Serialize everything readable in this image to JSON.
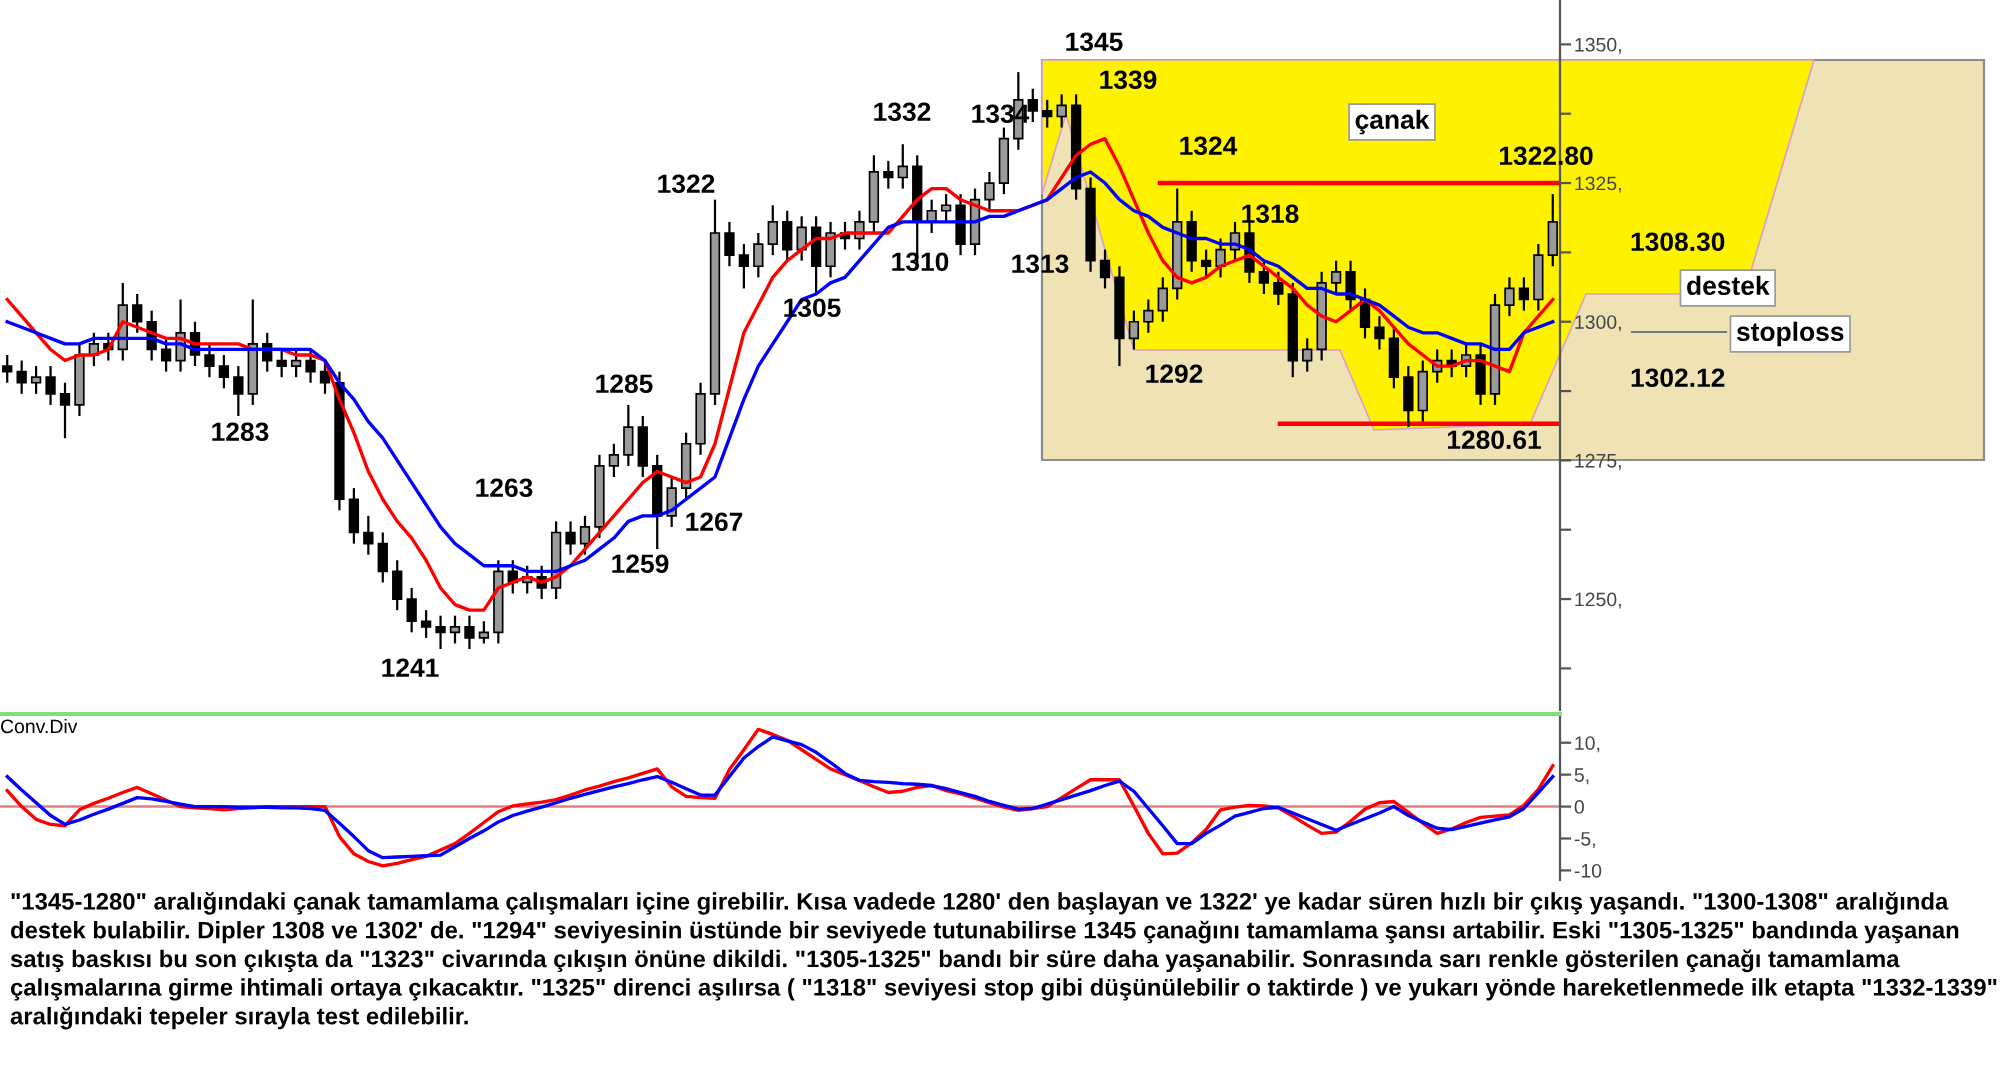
{
  "chart_data": [
    {
      "type": "candlestick",
      "color": "#000000",
      "categories": [
        null,
        null,
        null,
        null,
        null,
        null,
        null,
        null,
        null,
        null,
        null,
        null,
        null,
        null,
        null,
        null,
        null,
        null,
        null,
        null,
        null,
        null,
        null,
        null,
        null,
        null,
        null,
        null,
        null,
        null,
        null,
        null,
        null,
        null,
        null,
        null,
        null,
        null,
        null,
        null,
        null,
        null,
        null,
        null,
        null,
        null,
        null,
        null,
        null,
        null,
        null,
        null,
        null,
        null,
        null,
        null,
        null,
        null,
        null,
        null,
        null,
        null,
        null,
        null,
        null,
        null,
        null,
        null,
        null,
        null,
        null,
        null,
        null,
        null,
        null,
        null,
        null,
        null,
        null,
        null,
        null,
        null,
        null,
        null,
        null,
        null,
        null,
        null,
        null,
        null,
        null,
        null,
        null,
        null,
        null,
        null,
        null,
        null,
        null,
        null,
        null,
        null,
        null,
        null,
        null,
        null,
        null,
        null
      ],
      "ohlc": [
        [
          1292,
          1294,
          1289,
          1291
        ],
        [
          1291,
          1293,
          1287,
          1289
        ],
        [
          1289,
          1292,
          1287,
          1290
        ],
        [
          1290,
          1292,
          1285,
          1287
        ],
        [
          1287,
          1289,
          1279,
          1285
        ],
        [
          1285,
          1296,
          1283,
          1294
        ],
        [
          1294,
          1298,
          1292,
          1296
        ],
        [
          1296,
          1298,
          1293,
          1295
        ],
        [
          1295,
          1307,
          1293,
          1303
        ],
        [
          1303,
          1305,
          1298,
          1300
        ],
        [
          1300,
          1302,
          1293,
          1295
        ],
        [
          1295,
          1297,
          1291,
          1293
        ],
        [
          1293,
          1304,
          1291,
          1298
        ],
        [
          1298,
          1300,
          1292,
          1294
        ],
        [
          1294,
          1296,
          1290,
          1292
        ],
        [
          1292,
          1294,
          1288,
          1290
        ],
        [
          1290,
          1292,
          1283,
          1287
        ],
        [
          1287,
          1304,
          1285,
          1296
        ],
        [
          1296,
          1298,
          1291,
          1293
        ],
        [
          1293,
          1295,
          1290,
          1292
        ],
        [
          1292,
          1295,
          1290,
          1293
        ],
        [
          1293,
          1295,
          1289,
          1291
        ],
        [
          1291,
          1293,
          1287,
          1289
        ],
        [
          1289,
          1291,
          1266,
          1268
        ],
        [
          1268,
          1270,
          1260,
          1262
        ],
        [
          1262,
          1265,
          1258,
          1260
        ],
        [
          1260,
          1262,
          1253,
          1255
        ],
        [
          1255,
          1257,
          1248,
          1250
        ],
        [
          1250,
          1252,
          1244,
          1246
        ],
        [
          1246,
          1248,
          1243,
          1245
        ],
        [
          1245,
          1247,
          1241,
          1244
        ],
        [
          1244,
          1247,
          1242,
          1245
        ],
        [
          1245,
          1247,
          1241,
          1243
        ],
        [
          1243,
          1246,
          1242,
          1244
        ],
        [
          1244,
          1257,
          1242,
          1255
        ],
        [
          1255,
          1257,
          1251,
          1253
        ],
        [
          1253,
          1256,
          1251,
          1254
        ],
        [
          1254,
          1256,
          1250,
          1252
        ],
        [
          1252,
          1264,
          1250,
          1262
        ],
        [
          1262,
          1264,
          1258,
          1260
        ],
        [
          1260,
          1265,
          1258,
          1263
        ],
        [
          1263,
          1276,
          1261,
          1274
        ],
        [
          1274,
          1278,
          1272,
          1276
        ],
        [
          1276,
          1285,
          1274,
          1281
        ],
        [
          1281,
          1283,
          1272,
          1274
        ],
        [
          1274,
          1276,
          1259,
          1265
        ],
        [
          1265,
          1272,
          1263,
          1270
        ],
        [
          1270,
          1280,
          1268,
          1278
        ],
        [
          1278,
          1289,
          1276,
          1287
        ],
        [
          1287,
          1322,
          1285,
          1316
        ],
        [
          1316,
          1318,
          1310,
          1312
        ],
        [
          1312,
          1314,
          1306,
          1310
        ],
        [
          1310,
          1316,
          1308,
          1314
        ],
        [
          1314,
          1321,
          1312,
          1318
        ],
        [
          1318,
          1320,
          1311,
          1313
        ],
        [
          1313,
          1319,
          1311,
          1317
        ],
        [
          1317,
          1319,
          1305,
          1310
        ],
        [
          1310,
          1318,
          1308,
          1316
        ],
        [
          1316,
          1318,
          1313,
          1315
        ],
        [
          1315,
          1320,
          1313,
          1318
        ],
        [
          1318,
          1330,
          1316,
          1327
        ],
        [
          1327,
          1329,
          1324,
          1326
        ],
        [
          1326,
          1332,
          1324,
          1328
        ],
        [
          1328,
          1330,
          1310,
          1318
        ],
        [
          1318,
          1322,
          1316,
          1320
        ],
        [
          1320,
          1323,
          1318,
          1321
        ],
        [
          1321,
          1323,
          1312,
          1314
        ],
        [
          1314,
          1324,
          1312,
          1322
        ],
        [
          1322,
          1327,
          1320,
          1325
        ],
        [
          1325,
          1335,
          1323,
          1333
        ],
        [
          1333,
          1345,
          1331,
          1340
        ],
        [
          1340,
          1342,
          1336,
          1338
        ],
        [
          1338,
          1340,
          1335,
          1337
        ],
        [
          1337,
          1341,
          1335,
          1339
        ],
        [
          1339,
          1341,
          1322,
          1324
        ],
        [
          1324,
          1326,
          1309,
          1311
        ],
        [
          1311,
          1313,
          1306,
          1308
        ],
        [
          1308,
          1310,
          1292,
          1297
        ],
        [
          1297,
          1302,
          1295,
          1300
        ],
        [
          1300,
          1304,
          1298,
          1302
        ],
        [
          1302,
          1308,
          1300,
          1306
        ],
        [
          1306,
          1324,
          1304,
          1318
        ],
        [
          1318,
          1320,
          1309,
          1311
        ],
        [
          1311,
          1313,
          1308,
          1310
        ],
        [
          1310,
          1315,
          1308,
          1313
        ],
        [
          1313,
          1318,
          1311,
          1316
        ],
        [
          1316,
          1318,
          1307,
          1309
        ],
        [
          1309,
          1311,
          1305,
          1307
        ],
        [
          1307,
          1309,
          1303,
          1305
        ],
        [
          1305,
          1307,
          1290,
          1293
        ],
        [
          1293,
          1297,
          1291,
          1295
        ],
        [
          1295,
          1309,
          1293,
          1307
        ],
        [
          1307,
          1311,
          1305,
          1309
        ],
        [
          1309,
          1311,
          1302,
          1304
        ],
        [
          1304,
          1306,
          1297,
          1299
        ],
        [
          1299,
          1301,
          1295,
          1297
        ],
        [
          1297,
          1299,
          1288,
          1290
        ],
        [
          1290,
          1292,
          1281,
          1284
        ],
        [
          1284,
          1293,
          1282,
          1291
        ],
        [
          1291,
          1295,
          1289,
          1293
        ],
        [
          1293,
          1295,
          1290,
          1292
        ],
        [
          1292,
          1296,
          1290,
          1294
        ],
        [
          1294,
          1296,
          1285,
          1287
        ],
        [
          1287,
          1305,
          1285,
          1303
        ],
        [
          1303,
          1308,
          1301,
          1306
        ],
        [
          1306,
          1308,
          1302,
          1304
        ],
        [
          1304,
          1314,
          1302,
          1312
        ],
        [
          1312,
          1323,
          1310,
          1318
        ]
      ],
      "series": [
        {
          "type": "line",
          "color": "#ff0000",
          "values": [
            1304,
            1301,
            1298,
            1295,
            1293,
            1294,
            1294,
            1295,
            1300,
            1299,
            1298,
            1297,
            1297,
            1296,
            1296,
            1296,
            1296,
            1295,
            1295,
            1295,
            1294,
            1294,
            1293,
            1286,
            1280,
            1273,
            1268,
            1264,
            1261,
            1257,
            1252,
            1249,
            1248,
            1248,
            1252,
            1253,
            1254,
            1253,
            1254,
            1256,
            1259,
            1262,
            1265,
            1268,
            1271,
            1273,
            1272,
            1271,
            1272,
            1278,
            1288,
            1298,
            1303,
            1308,
            1311,
            1313,
            1315,
            1315,
            1316,
            1316,
            1316,
            1316,
            1319,
            1322,
            1324,
            1324,
            1322,
            1321,
            1320,
            1320,
            1320,
            1321,
            1322,
            1326,
            1330,
            1332,
            1333,
            1328,
            1322,
            1316,
            1311,
            1308,
            1307,
            1308,
            1310,
            1311,
            1312,
            1310,
            1308,
            1306,
            1303,
            1301,
            1300,
            1302,
            1304,
            1302,
            1299,
            1296,
            1294,
            1292,
            1292,
            1293,
            1293,
            1292,
            1291,
            1298,
            1301,
            1304
          ]
        },
        {
          "type": "line",
          "color": "#0000ff",
          "values": [
            1300,
            1299,
            1298,
            1297,
            1296,
            1296,
            1297,
            1297,
            1297,
            1297,
            1297,
            1296,
            1296,
            1295,
            1295,
            1295,
            1295,
            1295,
            1295,
            1295,
            1295,
            1295,
            1293,
            1289,
            1286,
            1282,
            1279,
            1275,
            1271,
            1267,
            1263,
            1260,
            1258,
            1256,
            1256,
            1256,
            1255,
            1255,
            1255,
            1256,
            1257,
            1259,
            1261,
            1264,
            1265,
            1265,
            1266,
            1268,
            1270,
            1272,
            1279,
            1286,
            1292,
            1296,
            1300,
            1304,
            1305,
            1307,
            1308,
            1311,
            1314,
            1317,
            1318,
            1318,
            1318,
            1318,
            1318,
            1318,
            1319,
            1319,
            1320,
            1321,
            1322,
            1324,
            1326,
            1327,
            1325,
            1322,
            1320,
            1319,
            1317,
            1316,
            1315,
            1315,
            1314,
            1314,
            1313,
            1311,
            1310,
            1308,
            1306,
            1306,
            1305,
            1305,
            1304,
            1303,
            1301,
            1299,
            1298,
            1298,
            1297,
            1296,
            1296,
            1295,
            1295,
            1298,
            1299,
            1300
          ]
        }
      ],
      "ref_lines": [
        {
          "axis": "y",
          "value": 1325,
          "color": "#ff0000"
        },
        {
          "axis": "y",
          "value": 1281.6,
          "color": "#ff0000"
        }
      ],
      "ylim": [
        1230,
        1358
      ],
      "yticks": [
        {
          "value": 1237.5,
          "label": null
        },
        {
          "value": 1250,
          "label": "1250,"
        },
        {
          "value": 1262.5,
          "label": null
        },
        {
          "value": 1275,
          "label": "1275,"
        },
        {
          "value": 1287.5,
          "label": null
        },
        {
          "value": 1300,
          "label": "1300,"
        },
        {
          "value": 1312.5,
          "label": null
        },
        {
          "value": 1325,
          "label": "1325,"
        },
        {
          "value": 1337.5,
          "label": null
        },
        {
          "value": 1350,
          "label": "1350,"
        }
      ],
      "tick_labels": "y",
      "grid": false,
      "annotations": [
        "1283",
        "1241",
        "1263",
        "1285",
        "1259",
        "1267",
        "1322",
        "1305",
        "1310",
        "1332",
        "1334",
        "1313",
        "1345",
        "1339",
        "1324",
        "1318",
        "1292",
        "1322.80",
        "1308.30",
        "1302.12",
        "1280.61",
        "çanak",
        "destek",
        "stoploss",
        "\"1345-1280\" aralığındaki çanak tamamlama çalışmaları içine girebilir. Kısa vadede 1280' den başlayan ve 1322' ye kadar süren hızlı bir çıkış yaşandı. \"1300-1308\" aralığında destek bulabilir. Dipler 1308 ve 1302' de. \"1294\" seviyesinin üstünde bir seviyede tutunabilirse 1345 çanağını tamamlama şansı artabilir. Eski \"1305-1325\" bandında yaşanan satış baskısı bu son çıkışta da \"1323\" civarında çıkışın önüne dikildi. \"1305-1325\" bandı bir süre daha yaşanabilir. Sonrasında sarı renkle gösterilen çanağı tamamlama çalışmalarına girme ihtimali ortaya çıkacaktır. \"1325\" direnci aşılırsa ( \"1318\" seviyesi stop gibi düşünülebilir o taktirde ) ve yukarı yönde hareketlenmede ilk etapta \"1332-1339\" aralığındaki tepeler sırayla test edilebilir."
      ]
    },
    {
      "type": "line",
      "title": "Conv.Div",
      "categories": [
        null,
        null,
        null,
        null,
        null,
        null,
        null,
        null,
        null,
        null,
        null,
        null,
        null,
        null,
        null,
        null,
        null,
        null,
        null,
        null,
        null,
        null,
        null,
        null,
        null,
        null,
        null,
        null,
        null,
        null,
        null,
        null,
        null,
        null,
        null,
        null,
        null,
        null,
        null,
        null,
        null,
        null,
        null,
        null,
        null,
        null,
        null,
        null,
        null,
        null,
        null,
        null,
        null,
        null,
        null,
        null,
        null,
        null,
        null,
        null,
        null,
        null,
        null,
        null,
        null,
        null,
        null,
        null,
        null,
        null,
        null,
        null,
        null,
        null,
        null,
        null,
        null,
        null,
        null,
        null,
        null,
        null,
        null,
        null,
        null,
        null,
        null,
        null,
        null,
        null,
        null,
        null,
        null,
        null,
        null,
        null,
        null,
        null,
        null,
        null,
        null,
        null,
        null,
        null,
        null,
        null,
        null,
        null
      ],
      "series": [
        {
          "color": "#ff0000",
          "values": [
            2.5,
            0,
            -2,
            -2.8,
            -3,
            -0.5,
            0.5,
            1.3,
            2.2,
            3,
            2,
            1,
            0,
            -0.2,
            -0.3,
            -0.5,
            -0.3,
            -0.2,
            0,
            0,
            0,
            0,
            0,
            -4.7,
            -7.4,
            -8.6,
            -9.3,
            -8.9,
            -8.3,
            -7.8,
            -6.8,
            -5.8,
            -4.2,
            -2.5,
            -0.8,
            0.1,
            0.4,
            0.7,
            1.1,
            1.8,
            2.6,
            3.2,
            3.9,
            4.5,
            5.2,
            5.9,
            3.1,
            1.6,
            1.4,
            1.3,
            5.8,
            8.9,
            12.1,
            11.3,
            10.4,
            8.9,
            7.4,
            5.9,
            5,
            4.1,
            3.1,
            2.2,
            2.4,
            3,
            3.3,
            2.5,
            2,
            1.3,
            0.6,
            -0.1,
            -0.6,
            -0.3,
            0,
            1.4,
            2.8,
            4.2,
            4.2,
            4.2,
            0.1,
            -4.2,
            -7.4,
            -7.3,
            -5.7,
            -3.6,
            -0.5,
            -0.1,
            0.2,
            0.1,
            -0.2,
            -1.5,
            -2.9,
            -4.2,
            -4,
            -2.3,
            -0.4,
            0.6,
            0.8,
            -0.9,
            -2.6,
            -4.2,
            -3.5,
            -2.5,
            -1.7,
            -1.5,
            -1.3,
            0.2,
            2.7,
            6.4
          ]
        },
        {
          "color": "#0000ff",
          "values": [
            4.7,
            2.6,
            0.6,
            -1.4,
            -2.8,
            -2.1,
            -1.2,
            -0.4,
            0.5,
            1.4,
            1.2,
            0.8,
            0.4,
            0,
            0,
            0,
            -0.1,
            -0.1,
            -0.1,
            -0.2,
            -0.2,
            -0.3,
            -0.6,
            -2.6,
            -4.7,
            -6.9,
            -8,
            -7.9,
            -7.8,
            -7.7,
            -7.6,
            -6.3,
            -5,
            -3.8,
            -2.4,
            -1.4,
            -0.7,
            -0.1,
            0.6,
            1.3,
            1.9,
            2.5,
            3.1,
            3.6,
            4.2,
            4.7,
            3.8,
            2.8,
            1.8,
            1.8,
            4.7,
            7.6,
            9.4,
            10.9,
            10.3,
            9.7,
            8.5,
            6.9,
            5.2,
            4.1,
            3.9,
            3.8,
            3.6,
            3.5,
            3.3,
            2.8,
            2.2,
            1.6,
            0.8,
            0.2,
            -0.4,
            -0.3,
            0.4,
            1.1,
            1.8,
            2.5,
            3.3,
            4,
            2.4,
            -0.3,
            -3,
            -5.8,
            -5.8,
            -4.2,
            -2.9,
            -1.5,
            -0.9,
            -0.3,
            -0.1,
            -1,
            -1.9,
            -2.8,
            -3.7,
            -2.8,
            -1.9,
            -1,
            0,
            -1.4,
            -2.4,
            -3.4,
            -3.6,
            -3.1,
            -2.6,
            -2.1,
            -1.6,
            -0.3,
            2.2,
            4.7
          ]
        }
      ],
      "ylim": [
        -11.5,
        14.5
      ],
      "yticks": [
        {
          "value": 10,
          "label": "10,"
        },
        {
          "value": 5,
          "label": "5,"
        },
        {
          "value": 0,
          "label": "0"
        },
        {
          "value": -5,
          "label": "-5,"
        },
        {
          "value": -10,
          "label": "-10"
        }
      ],
      "tick_labels": "y",
      "grid": false,
      "ref_lines": [
        {
          "axis": "y",
          "value": 0,
          "color": "#e08080"
        }
      ]
    }
  ]
}
